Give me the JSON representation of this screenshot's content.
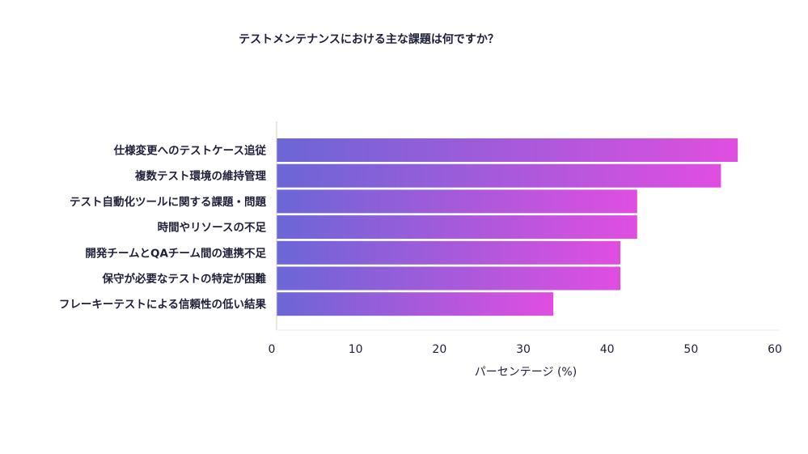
{
  "chart_data": {
    "type": "bar",
    "orientation": "horizontal",
    "title": "テストメンテナンスにおける主な課題は何ですか？",
    "xlabel": "パーセンテージ (%)",
    "ylabel": "",
    "xlim": [
      0,
      60
    ],
    "xticks": [
      0,
      10,
      20,
      30,
      40,
      50,
      60
    ],
    "categories": [
      "仕様変更へのテストケース追従",
      "複数テスト環境の維持管理",
      "テスト自動化ツールに関する課題・問題",
      "時間やリソースの不足",
      "開発チームとQAチーム間の連携不足",
      "保守が必要なテストの特定が困難",
      "フレーキーテストによる信頼性の低い結果"
    ],
    "values": [
      55,
      53,
      43,
      43,
      41,
      41,
      33
    ],
    "grid": false,
    "legend": "none",
    "colors": {
      "bar_gradient_start": "#6b66d6",
      "bar_gradient_end": "#e04ee0",
      "axis": "#cccccc",
      "text": "#1f1f3a"
    }
  }
}
